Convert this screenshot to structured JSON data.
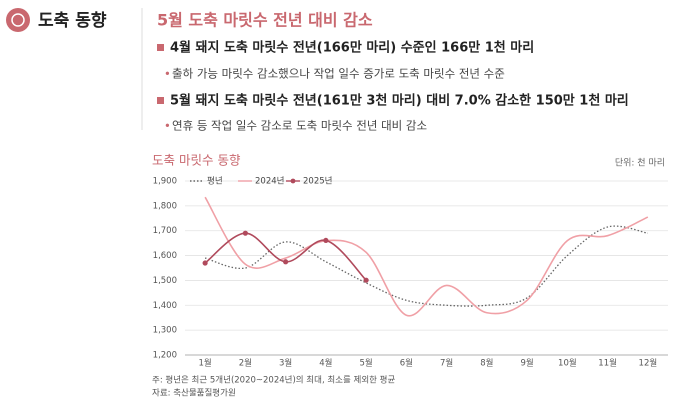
{
  "header": {
    "title": "도축 동향",
    "headline": "5월 도축 마릿수 전년 대비 감소"
  },
  "bullets": [
    {
      "text": "4월 돼지 도축 마릿수 전년(166만 마리) 수준인 166만 1천 마리",
      "sub": "출하 가능 마릿수 감소했으나 작업 일수 증가로 도축 마릿수 전년 수준"
    },
    {
      "text": "5월 돼지 도축 마릿수 전년(161만 3천 마리) 대비 7.0% 감소한 150만 1천 마리",
      "sub": "연휴 등 작업 일수 감소로 도축 마릿수 전년 대비 감소"
    }
  ],
  "chart_data": {
    "type": "line",
    "title": "도축 마릿수 동향",
    "unit": "단위: 천 마리",
    "categories": [
      "1월",
      "2월",
      "3월",
      "4월",
      "5월",
      "6월",
      "7월",
      "8월",
      "9월",
      "10월",
      "11월",
      "12월"
    ],
    "series": [
      {
        "name": "평년",
        "color": "#666666",
        "dash": "dotted",
        "values": [
          1590,
          1550,
          1655,
          1575,
          1490,
          1420,
          1400,
          1400,
          1430,
          1600,
          1715,
          1690
        ]
      },
      {
        "name": "2024년",
        "color": "#f0a0a6",
        "values": [
          1835,
          1565,
          1590,
          1660,
          1613,
          1360,
          1480,
          1370,
          1420,
          1660,
          1680,
          1755
        ]
      },
      {
        "name": "2025년",
        "color": "#b04a5c",
        "markers": true,
        "values": [
          1570,
          1690,
          1575,
          1661,
          1501,
          null,
          null,
          null,
          null,
          null,
          null,
          null
        ]
      }
    ],
    "ylim": [
      1200,
      1900
    ],
    "yticks": [
      {
        "value": 1200,
        "label": "1,200"
      },
      {
        "value": 1300,
        "label": "1,300"
      },
      {
        "value": 1400,
        "label": "1,400"
      },
      {
        "value": 1500,
        "label": "1,500"
      },
      {
        "value": 1600,
        "label": "1,600"
      },
      {
        "value": 1700,
        "label": "1,700"
      },
      {
        "value": 1800,
        "label": "1,800"
      },
      {
        "value": 1900,
        "label": "1,900"
      }
    ],
    "grid": true,
    "notes": [
      "주: 평년은 최근 5개년(2020~2024년)의 최대, 최소를 제외한 평균",
      "자료: 축산물품질평가원"
    ]
  }
}
